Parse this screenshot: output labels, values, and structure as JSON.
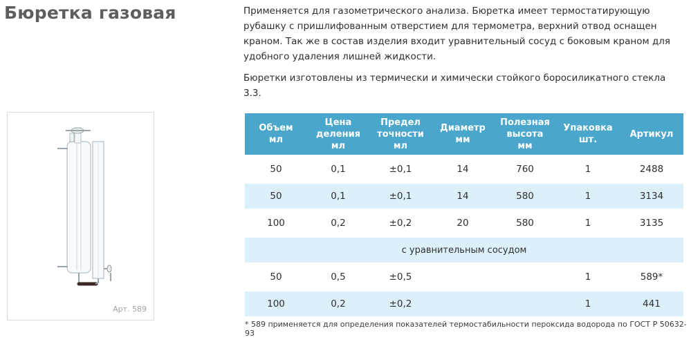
{
  "title": "Бюретка газовая",
  "description": {
    "paragraph1": "Применяется для газометрического анализа. Бюретка имеет термостатирующую рубашку с пришлифованным отверстием для термометра, верхний отвод оснащен краном. Так же в состав изделия входит уравнительный сосуд с боковым краном для удобного удаления лишней жидкости.",
    "paragraph2": "Бюретки изготовлены из термически и химически стойкого боросиликатного стекла 3.3."
  },
  "photo": {
    "caption": "Арт. 589"
  },
  "table": {
    "headers": [
      {
        "line1": "Объем",
        "line2": "мл"
      },
      {
        "line1": "Цена деления",
        "line2": "мл"
      },
      {
        "line1": "Предел точности",
        "line2": "мл"
      },
      {
        "line1": "Диаметр",
        "line2": "мм"
      },
      {
        "line1": "Полезная высота",
        "line2": "мм"
      },
      {
        "line1": "Упаковка",
        "line2": "шт."
      },
      {
        "line1": "Артикул",
        "line2": ""
      }
    ],
    "rows": [
      [
        "50",
        "0,1",
        "±0,1",
        "14",
        "760",
        "1",
        "2488"
      ],
      [
        "50",
        "0,1",
        "±0,1",
        "14",
        "580",
        "1",
        "3134"
      ],
      [
        "100",
        "0,2",
        "±0,2",
        "20",
        "580",
        "1",
        "3135"
      ],
      [
        "50",
        "0,5",
        "±0,5",
        "",
        "",
        "1",
        "589*"
      ],
      [
        "100",
        "0,2",
        "±0,2",
        "",
        "",
        "1",
        "441"
      ]
    ],
    "section_label": "с уравнительным сосудом"
  },
  "footnote": "* 589 применяется для определения показателей термостабильности пероксида водорода по ГОСТ Р 50632-93",
  "colors": {
    "header_bg": "#4ba6cc",
    "stripe_bg": "#dcf0f9",
    "title": "#5e5e5e"
  }
}
